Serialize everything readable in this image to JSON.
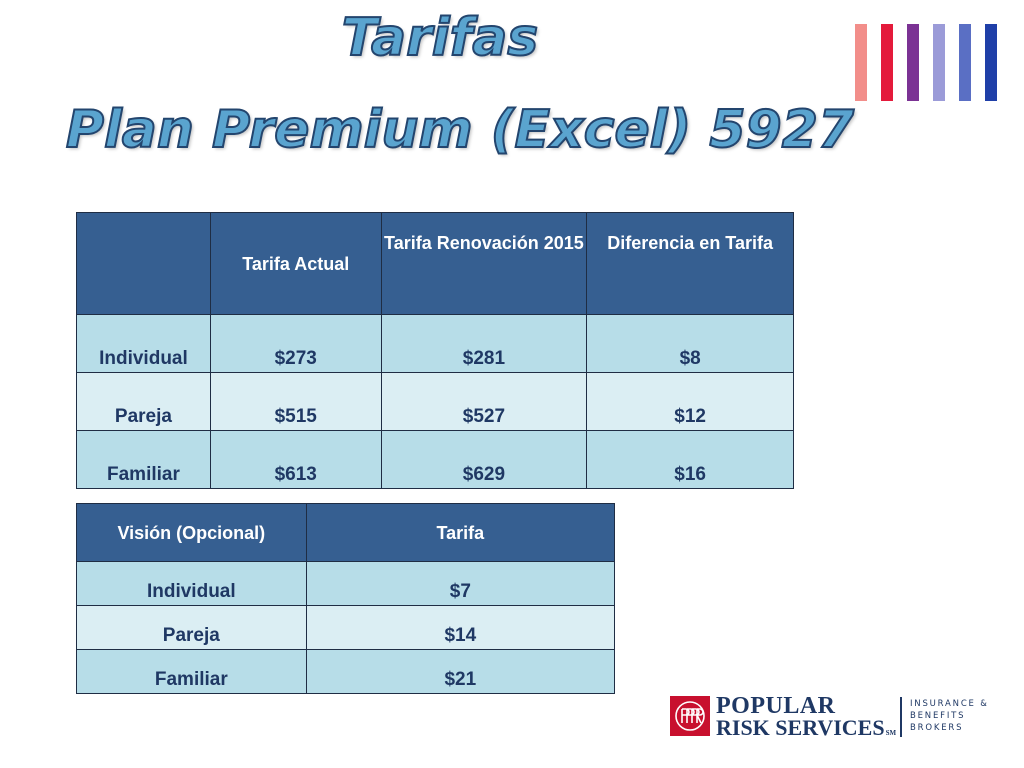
{
  "title": {
    "line1": "Tarifas",
    "line2": "Plan Premium (Excel) 5927"
  },
  "brand_stripes": [
    "#f28e8a",
    "#e41a3b",
    "#7b3294",
    "#9b9bd8",
    "#5a6fc4",
    "#1f3fa8"
  ],
  "plan_table": {
    "headers": [
      "",
      "Tarifa Actual",
      "Tarifa Renovación 2015",
      "Diferencia en Tarifa"
    ],
    "rows": [
      {
        "label": "Individual",
        "actual": "$273",
        "renovacion": "$281",
        "diferencia": "$8"
      },
      {
        "label": "Pareja",
        "actual": "$515",
        "renovacion": "$527",
        "diferencia": "$12"
      },
      {
        "label": "Familiar",
        "actual": "$613",
        "renovacion": "$629",
        "diferencia": "$16"
      }
    ]
  },
  "vision_table": {
    "headers": [
      "Visión (Opcional)",
      "Tarifa"
    ],
    "rows": [
      {
        "label": "Individual",
        "tarifa": "$7"
      },
      {
        "label": "Pareja",
        "tarifa": "$14"
      },
      {
        "label": "Familiar",
        "tarifa": "$21"
      }
    ]
  },
  "logo": {
    "line1": "POPULAR",
    "line2": "RISK SERVICES",
    "mark": "SM",
    "tagline": [
      "INSURANCE &",
      "BENEFITS",
      "BROKERS"
    ]
  },
  "colors": {
    "header_bg": "#365f91",
    "row_dark": "#b7dde8",
    "row_light": "#dbeef3",
    "title_fill": "#5aa4cf",
    "brand_red": "#c8102e",
    "brand_navy": "#1f3864"
  }
}
